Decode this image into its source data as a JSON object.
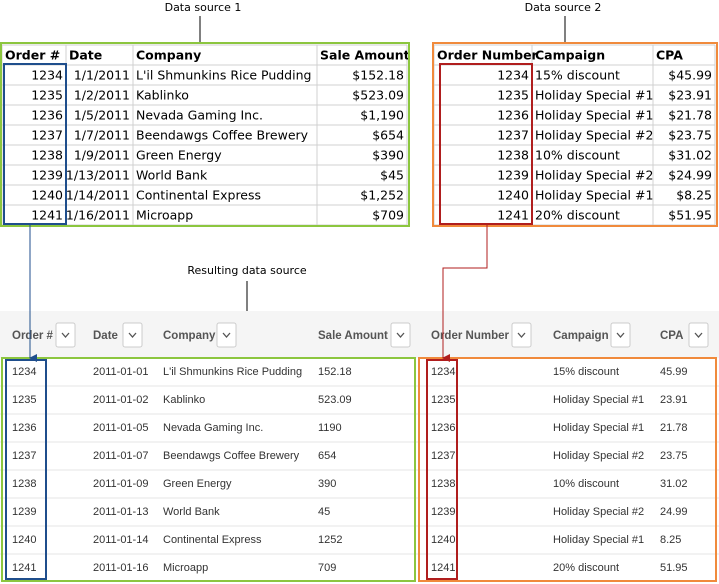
{
  "source1": {
    "label": "Data source 1",
    "columns": [
      "Order #",
      "Date",
      "Company",
      "Sale Amount"
    ],
    "rows": [
      [
        1234,
        "1/1/2011",
        "L'il Shmunkins Rice Pudding",
        "$152.18"
      ],
      [
        1235,
        "1/2/2011",
        "Kablinko",
        "$523.09"
      ],
      [
        1236,
        "1/5/2011",
        "Nevada Gaming Inc.",
        "$1,190"
      ],
      [
        1237,
        "1/7/2011",
        "Beendawgs Coffee Brewery",
        "$654"
      ],
      [
        1238,
        "1/9/2011",
        "Green Energy",
        "$390"
      ],
      [
        1239,
        "1/13/2011",
        "World Bank",
        "$45"
      ],
      [
        1240,
        "1/14/2011",
        "Continental Express",
        "$1,252"
      ],
      [
        1241,
        "1/16/2011",
        "Microapp",
        "$709"
      ]
    ]
  },
  "source2": {
    "label": "Data source 2",
    "columns": [
      "Order Number",
      "Campaign",
      "CPA"
    ],
    "rows": [
      [
        1234,
        "15% discount",
        "$45.99"
      ],
      [
        1235,
        "Holiday Special #1",
        "$23.91"
      ],
      [
        1236,
        "Holiday Special #1",
        "$21.78"
      ],
      [
        1237,
        "Holiday Special #2",
        "$23.75"
      ],
      [
        1238,
        "10% discount",
        "$31.02"
      ],
      [
        1239,
        "Holiday Special #2",
        "$24.99"
      ],
      [
        1240,
        "Holiday Special #1",
        "$8.25"
      ],
      [
        1241,
        "20% discount",
        "$51.95"
      ]
    ]
  },
  "result": {
    "label": "Resulting data source",
    "columns": [
      "Order #",
      "Date",
      "Company",
      "Sale Amount",
      "Order Number",
      "Campaign",
      "CPA"
    ],
    "rows": [
      [
        1234,
        "2011-01-01",
        "L'il Shmunkins Rice Pudding",
        152.18,
        1234,
        "15% discount",
        45.99
      ],
      [
        1235,
        "2011-01-02",
        "Kablinko",
        523.09,
        1235,
        "Holiday Special #1",
        23.91
      ],
      [
        1236,
        "2011-01-05",
        "Nevada Gaming Inc.",
        1190,
        1236,
        "Holiday Special #1",
        21.78
      ],
      [
        1237,
        "2011-01-07",
        "Beendawgs Coffee Brewery",
        654,
        1237,
        "Holiday Special #2",
        23.75
      ],
      [
        1238,
        "2011-01-09",
        "Green Energy",
        390,
        1238,
        "10% discount",
        31.02
      ],
      [
        1239,
        "2011-01-13",
        "World Bank",
        45,
        1239,
        "Holiday Special #2",
        24.99
      ],
      [
        1240,
        "2011-01-14",
        "Continental Express",
        1252,
        1240,
        "Holiday Special #1",
        8.25
      ],
      [
        1241,
        "2011-01-16",
        "Microapp",
        709,
        1241,
        "20% discount",
        51.95
      ]
    ]
  }
}
